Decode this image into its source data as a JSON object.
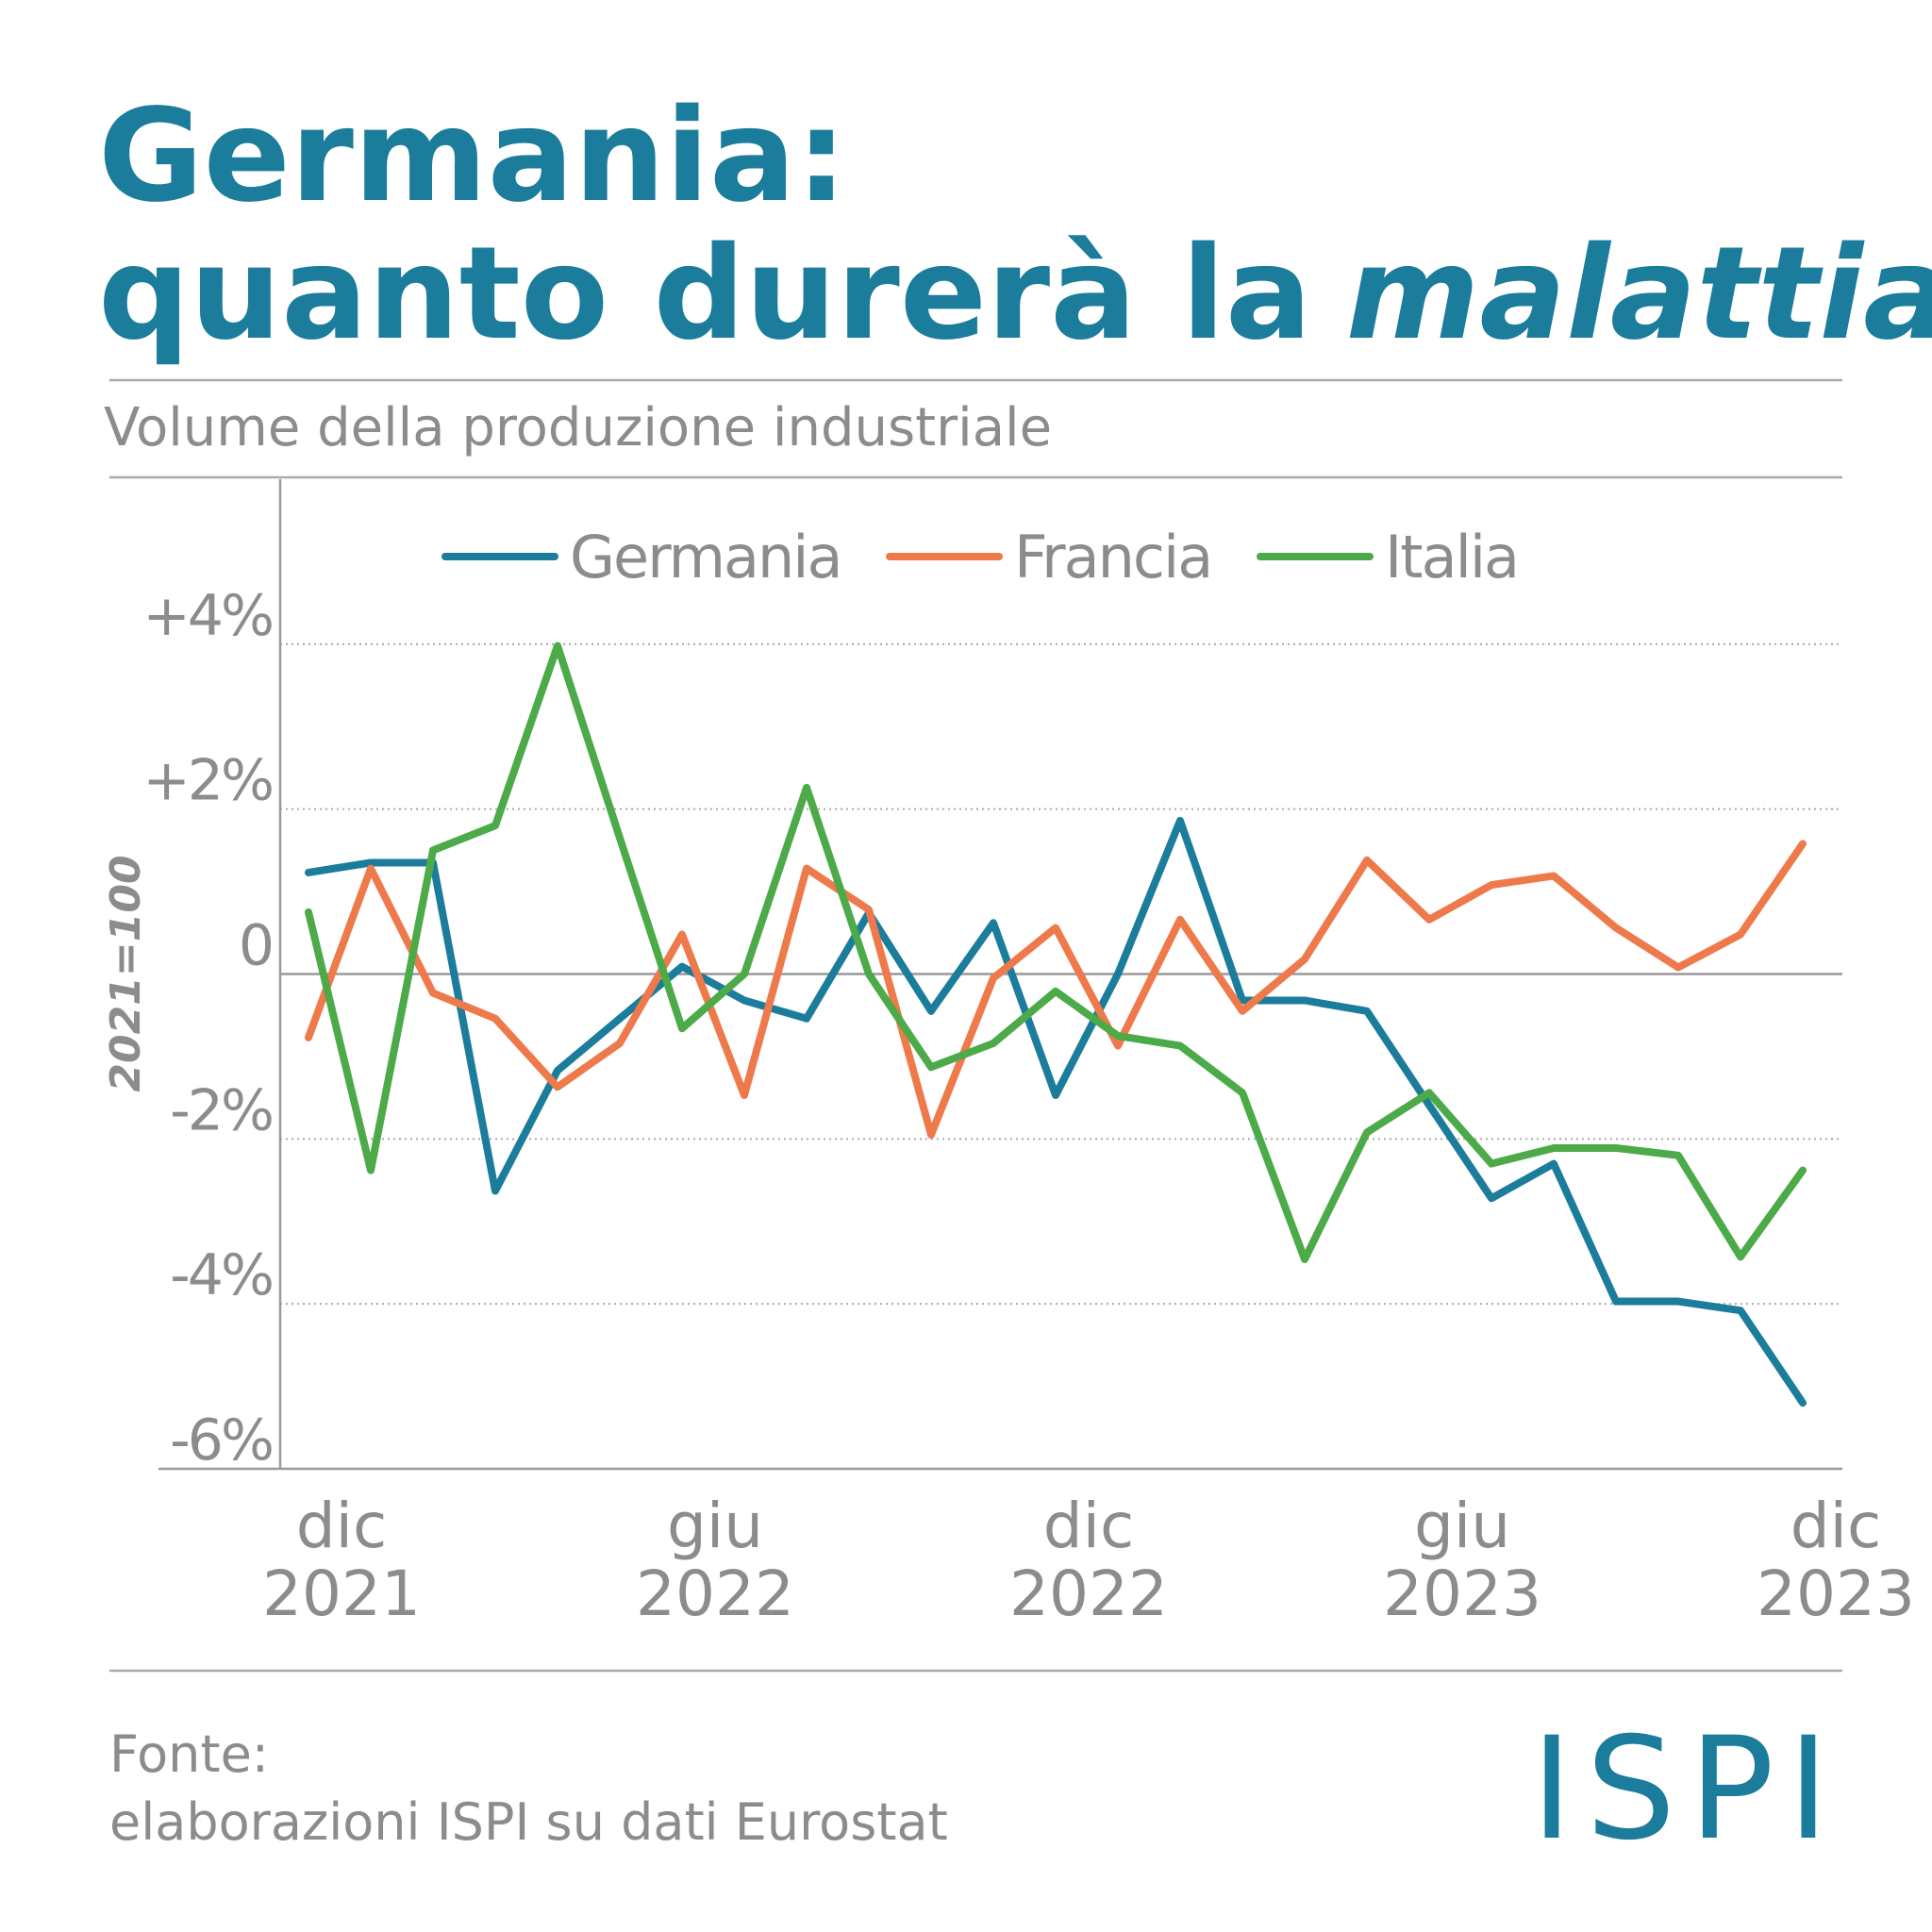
{
  "chart_data": {
    "type": "line",
    "title": [
      "Germania:",
      "quanto durerà la",
      "malattia",
      "?"
    ],
    "subtitle": "Volume della produzione industriale",
    "y_label": "2021=100",
    "source": [
      "Fonte:",
      "elaborazioni ISPI su dati Eurostat"
    ],
    "logo": "ISPI",
    "categories": [
      "dic 2021",
      null,
      null,
      null,
      null,
      null,
      "giu 2022",
      null,
      null,
      null,
      null,
      null,
      "dic 2022",
      null,
      null,
      null,
      null,
      null,
      "giu 2023",
      null,
      null,
      null,
      null,
      null,
      "dic 2023"
    ],
    "series": [
      {
        "name": "Germania",
        "color": "#1b7d9b",
        "values": [
          1.23,
          1.35,
          1.35,
          -2.63,
          -1.17,
          -0.54,
          0.09,
          -0.32,
          -0.54,
          0.74,
          -0.45,
          0.62,
          -1.47,
          0,
          1.86,
          -0.32,
          -0.32,
          -0.45,
          -1.59,
          -2.72,
          -2.3,
          -3.97,
          -3.97,
          -4.08,
          -5.2
        ]
      },
      {
        "name": "Francia",
        "color": "#ee7a4c",
        "values": [
          -0.77,
          1.28,
          -0.23,
          -0.54,
          -1.37,
          -0.84,
          0.48,
          -1.47,
          1.28,
          0.78,
          -1.95,
          -0.05,
          0.56,
          -0.87,
          0.66,
          -0.45,
          0.18,
          1.38,
          0.66,
          1.08,
          1.19,
          0.56,
          0.08,
          0.48,
          1.58
        ]
      },
      {
        "name": "Italia",
        "color": "#4caa49",
        "values": [
          0.75,
          -2.38,
          1.5,
          1.8,
          3.98,
          1.65,
          -0.66,
          0,
          2.26,
          0,
          -1.13,
          -0.84,
          -0.21,
          -0.75,
          -0.87,
          -1.44,
          -3.46,
          -1.92,
          -1.44,
          -2.3,
          -2.11,
          -2.11,
          -2.2,
          -3.43,
          -2.38
        ]
      }
    ],
    "ylim": [
      -6,
      6
    ],
    "yticks": [
      {
        "value": 4,
        "label": "+4%"
      },
      {
        "value": 2,
        "label": "+2%"
      },
      0,
      {
        "value": -2,
        "label": "-2%"
      },
      {
        "value": -4,
        "label": "-4%"
      },
      {
        "value": -6,
        "label": "-6%"
      }
    ],
    "grid": true,
    "legend": "top"
  }
}
